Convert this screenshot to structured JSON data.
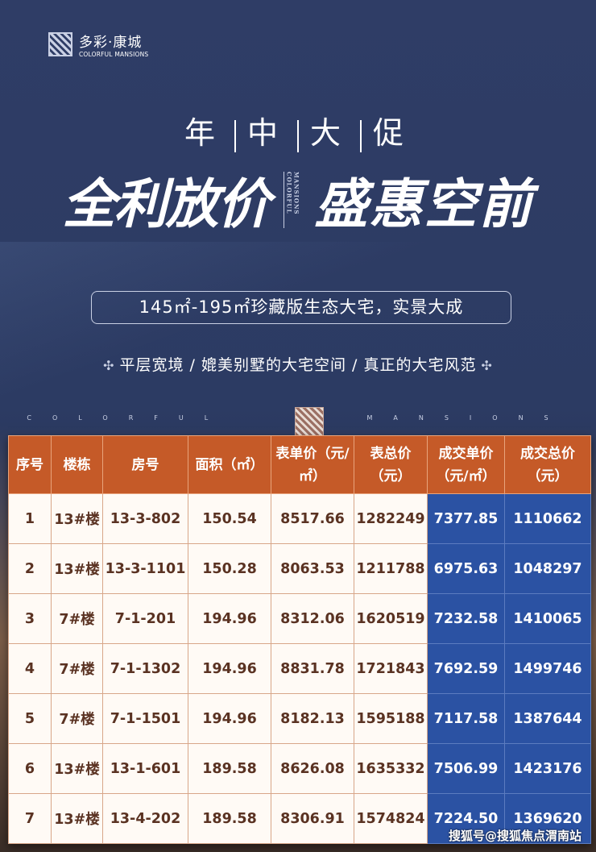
{
  "logo": {
    "cn": "多彩·康城",
    "en": "COLORFUL MANSIONS"
  },
  "headline": [
    "年",
    "中",
    "大",
    "促"
  ],
  "slogan_left": "全利放价",
  "slogan_right": "盛惠空前",
  "slogan_vertical": "MANSIONS COLORFUL",
  "pill": "145㎡-195㎡珍藏版生态大宅，实景大成",
  "subline": "平层宽境 / 媲美别墅的大宅空间 / 真正的大宅风范",
  "band": {
    "left": "COLORFUL",
    "right": "MANSIONS"
  },
  "table": {
    "headers": [
      "序号",
      "楼栋",
      "房号",
      "面积（㎡）",
      "表单价（元/㎡）",
      "表总价（元）",
      "成交单价（元/㎡）",
      "成交总价（元）"
    ],
    "rows": [
      [
        "1",
        "13#楼",
        "13-3-802",
        "150.54",
        "8517.66",
        "1282249",
        "7377.85",
        "1110662"
      ],
      [
        "2",
        "13#楼",
        "13-3-1101",
        "150.28",
        "8063.53",
        "1211788",
        "6975.63",
        "1048297"
      ],
      [
        "3",
        "7#楼",
        "7-1-201",
        "194.96",
        "8312.06",
        "1620519",
        "7232.58",
        "1410065"
      ],
      [
        "4",
        "7#楼",
        "7-1-1302",
        "194.96",
        "8831.78",
        "1721843",
        "7692.59",
        "1499746"
      ],
      [
        "5",
        "7#楼",
        "7-1-1501",
        "194.96",
        "8182.13",
        "1595188",
        "7117.58",
        "1387644"
      ],
      [
        "6",
        "13#楼",
        "13-1-601",
        "189.58",
        "8626.08",
        "1635332",
        "7506.99",
        "1423176"
      ],
      [
        "7",
        "13#楼",
        "13-4-202",
        "189.58",
        "8306.91",
        "1574824",
        "7224.50",
        "1369620"
      ]
    ]
  },
  "watermark": "搜狐号@搜狐焦点渭南站",
  "colors": {
    "background": "#2f3d66",
    "header": "#c55a28",
    "highlight": "#2b52a3"
  }
}
